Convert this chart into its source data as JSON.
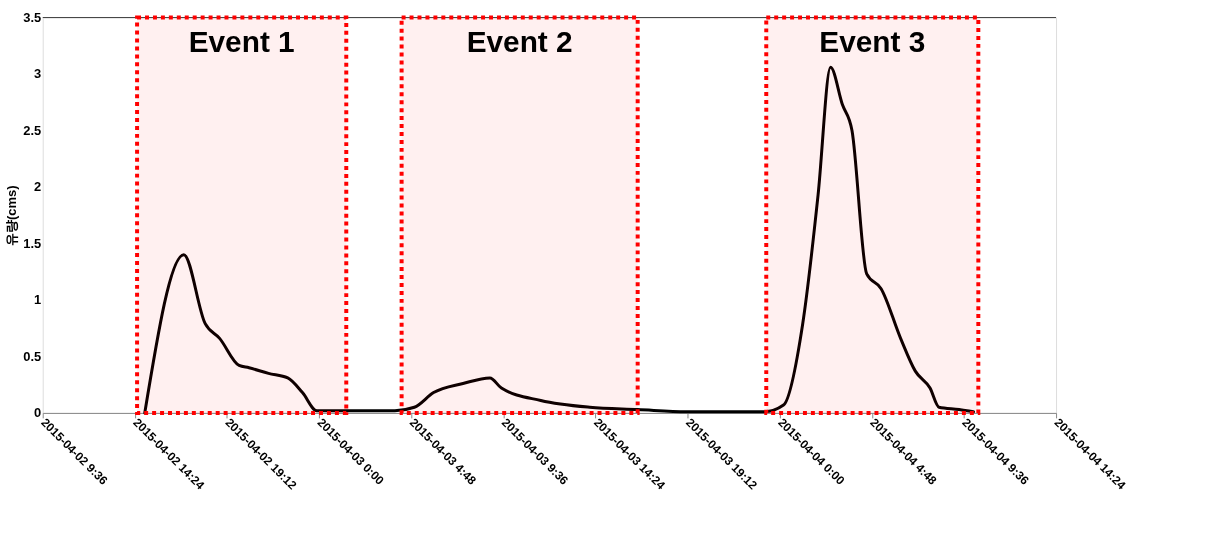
{
  "chart_data": {
    "type": "line",
    "ylabel": "유량(cms)",
    "x": [
      "2015-04-02T14:55",
      "2015-04-02T16:57",
      "2015-04-02T18:04",
      "2015-04-02T18:49",
      "2015-04-02T19:50",
      "2015-04-02T20:21",
      "2015-04-02T21:22",
      "2015-04-02T22:22",
      "2015-04-02T23:08",
      "2015-04-02T23:53",
      "2015-04-03T01:25",
      "2015-04-03T03:57",
      "2015-04-03T04:58",
      "2015-04-03T05:58",
      "2015-04-03T07:30",
      "2015-04-03T08:54",
      "2015-04-03T09:30",
      "2015-04-03T11:33",
      "2015-04-03T14:06",
      "2015-04-03T16:36",
      "2015-04-03T19:09",
      "2015-04-03T23:12",
      "2015-04-04T00:12",
      "2015-04-04T01:12",
      "2015-04-04T02:00",
      "2015-04-04T02:39",
      "2015-04-04T03:16",
      "2015-04-04T03:46",
      "2015-04-04T04:32",
      "2015-04-04T05:17",
      "2015-04-04T06:18",
      "2015-04-04T07:04",
      "2015-04-04T07:50",
      "2015-04-04T08:18",
      "2015-04-04T09:21",
      "2015-04-04T10:06"
    ],
    "series": [
      {
        "color": "#000000",
        "values": [
          0,
          1.4,
          0.79,
          0.66,
          0.42,
          0.4,
          0.35,
          0.31,
          0.18,
          0.02,
          0.02,
          0.02,
          0.05,
          0.18,
          0.26,
          0.31,
          0.22,
          0.11,
          0.05,
          0.03,
          0.01,
          0.01,
          0.07,
          0.79,
          1.93,
          3.06,
          2.73,
          2.5,
          1.23,
          1.1,
          0.66,
          0.37,
          0.22,
          0.05,
          0.03,
          0.01
        ]
      }
    ],
    "xlim": [
      "2015-04-02T09:36",
      "2015-04-04T14:24"
    ],
    "xticks": [
      {
        "value": "2015-04-02T09:36",
        "label": "2015-04-02 9:36"
      },
      {
        "value": "2015-04-02T14:24",
        "label": "2015-04-02 14:24"
      },
      {
        "value": "2015-04-02T19:12",
        "label": "2015-04-02 19:12"
      },
      {
        "value": "2015-04-03T00:00",
        "label": "2015-04-03 0:00"
      },
      {
        "value": "2015-04-03T04:48",
        "label": "2015-04-03 4:48"
      },
      {
        "value": "2015-04-03T09:36",
        "label": "2015-04-03 9:36"
      },
      {
        "value": "2015-04-03T14:24",
        "label": "2015-04-03 14:24"
      },
      {
        "value": "2015-04-03T19:12",
        "label": "2015-04-03 19:12"
      },
      {
        "value": "2015-04-04T00:00",
        "label": "2015-04-04 0:00"
      },
      {
        "value": "2015-04-04T04:48",
        "label": "2015-04-04 4:48"
      },
      {
        "value": "2015-04-04T09:36",
        "label": "2015-04-04 9:36"
      },
      {
        "value": "2015-04-04T14:24",
        "label": "2015-04-04 14:24"
      }
    ],
    "ylim": [
      0,
      3.5
    ],
    "yticks": [
      0,
      0.5,
      1,
      1.5,
      2,
      2.5,
      3,
      3.5
    ],
    "grid": false,
    "marker": "none",
    "line_style": "solid",
    "bands": [
      {
        "axis": "x",
        "from": "2015-04-02T14:31",
        "to": "2015-04-03T01:25",
        "label": "Event 1",
        "color": "#ff0000"
      },
      {
        "axis": "x",
        "from": "2015-04-03T04:18",
        "to": "2015-04-03T16:36",
        "label": "Event 2",
        "color": "#ff0000"
      },
      {
        "axis": "x",
        "from": "2015-04-03T23:18",
        "to": "2015-04-04T10:21",
        "label": "Event 3",
        "color": "#ff0000"
      }
    ]
  }
}
